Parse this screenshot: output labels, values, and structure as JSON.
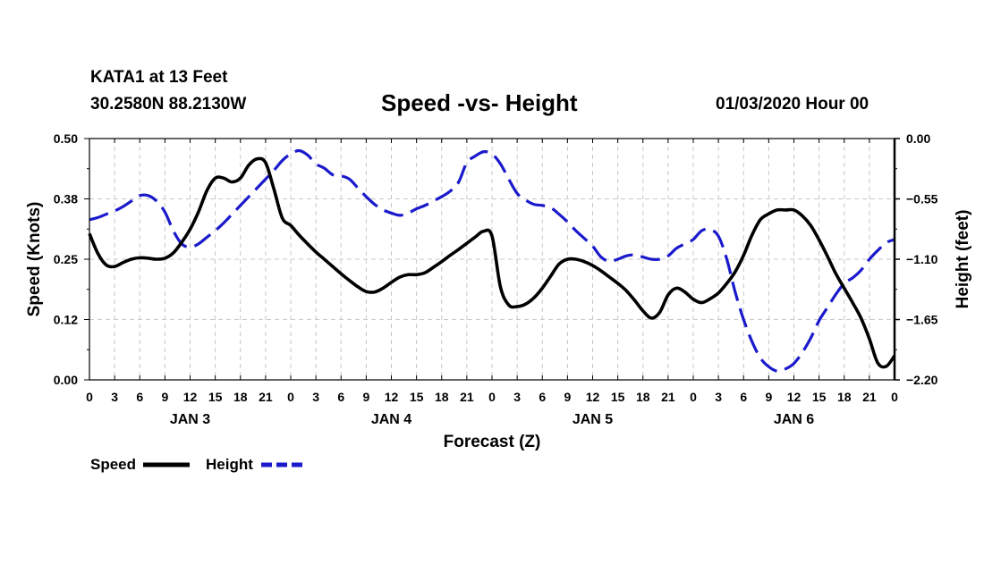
{
  "header": {
    "station": "KATA1 at 13 Feet",
    "coords": "30.2580N 88.2130W",
    "title": "Speed -vs- Height",
    "datestamp": "01/03/2020 Hour 00"
  },
  "colors": {
    "speed": "#000000",
    "height": "#1a1acc",
    "grid": "#c8c8c8"
  },
  "chart_data": {
    "type": "line",
    "title": "Speed -vs- Height",
    "xlabel": "Forecast (Z)",
    "ylabel": "Speed (Knots)",
    "y2label": "Height (feet)",
    "xlim": [
      0,
      96
    ],
    "ylim": [
      0,
      0.5
    ],
    "y2lim": [
      -2.2,
      0
    ],
    "grid": true,
    "x_ticks": [
      0,
      3,
      6,
      9,
      12,
      15,
      18,
      21,
      24,
      27,
      30,
      33,
      36,
      39,
      42,
      45,
      48,
      51,
      54,
      57,
      60,
      63,
      66,
      69,
      72,
      75,
      78,
      81,
      84,
      87,
      90,
      93,
      96
    ],
    "x_tick_labels": [
      "0",
      "3",
      "6",
      "9",
      "12",
      "15",
      "18",
      "21",
      "0",
      "3",
      "6",
      "9",
      "12",
      "15",
      "18",
      "21",
      "0",
      "3",
      "6",
      "9",
      "12",
      "15",
      "18",
      "21",
      "0",
      "3",
      "6",
      "9",
      "12",
      "15",
      "18",
      "21",
      "0"
    ],
    "day_labels": [
      {
        "label": "JAN 3",
        "x": 12
      },
      {
        "label": "JAN 4",
        "x": 36
      },
      {
        "label": "JAN 5",
        "x": 60
      },
      {
        "label": "JAN 6",
        "x": 84
      }
    ],
    "y_ticks": [
      0,
      0.125,
      0.25,
      0.375,
      0.5
    ],
    "y_tick_labels": [
      "0.00",
      "0.12",
      "0.25",
      "0.38",
      "0.50"
    ],
    "y2_ticks": [
      -2.2,
      -1.65,
      -1.1,
      -0.55,
      0
    ],
    "y2_tick_labels": [
      "−2.20",
      "−1.65",
      "−1.10",
      "−0.55",
      "0.00"
    ],
    "legend": [
      {
        "label": "Speed",
        "series": "Speed"
      },
      {
        "label": "Height",
        "series": "Height"
      }
    ],
    "legend_position": "bottom-left",
    "series": [
      {
        "name": "Speed",
        "axis": "left",
        "style": "solid",
        "x": [
          0,
          1,
          2,
          3,
          4,
          5,
          6,
          7,
          8,
          9,
          10,
          11,
          12,
          13,
          14,
          15,
          16,
          17,
          18,
          19,
          20,
          21,
          22,
          23,
          24,
          25,
          26,
          27,
          28,
          29,
          30,
          31,
          32,
          33,
          34,
          35,
          36,
          37,
          38,
          39,
          40,
          41,
          42,
          43,
          44,
          45,
          46,
          47,
          48,
          49,
          50,
          51,
          52,
          53,
          54,
          55,
          56,
          57,
          58,
          59,
          60,
          61,
          62,
          63,
          64,
          65,
          66,
          67,
          68,
          69,
          70,
          71,
          72,
          73,
          74,
          75,
          76,
          77,
          78,
          79,
          80,
          81,
          82,
          83,
          84,
          85,
          86,
          87,
          88,
          89,
          90,
          91,
          92,
          93,
          94,
          95,
          96
        ],
        "values": [
          0.303,
          0.262,
          0.238,
          0.235,
          0.243,
          0.25,
          0.253,
          0.252,
          0.25,
          0.252,
          0.263,
          0.285,
          0.312,
          0.348,
          0.392,
          0.418,
          0.418,
          0.41,
          0.418,
          0.445,
          0.458,
          0.45,
          0.395,
          0.335,
          0.32,
          0.3,
          0.282,
          0.265,
          0.25,
          0.235,
          0.22,
          0.206,
          0.193,
          0.183,
          0.182,
          0.19,
          0.202,
          0.213,
          0.218,
          0.218,
          0.222,
          0.233,
          0.245,
          0.258,
          0.27,
          0.283,
          0.296,
          0.308,
          0.298,
          0.193,
          0.155,
          0.152,
          0.157,
          0.17,
          0.19,
          0.215,
          0.24,
          0.25,
          0.25,
          0.245,
          0.237,
          0.226,
          0.213,
          0.2,
          0.185,
          0.165,
          0.143,
          0.128,
          0.14,
          0.176,
          0.19,
          0.182,
          0.167,
          0.16,
          0.168,
          0.18,
          0.2,
          0.224,
          0.258,
          0.3,
          0.332,
          0.344,
          0.352,
          0.352,
          0.352,
          0.34,
          0.32,
          0.29,
          0.256,
          0.22,
          0.19,
          0.16,
          0.128,
          0.085,
          0.035,
          0.028,
          0.05
        ]
      },
      {
        "name": "Height",
        "axis": "right",
        "style": "dashed",
        "x": [
          0,
          1,
          2,
          3,
          4,
          5,
          6,
          7,
          8,
          9,
          10,
          11,
          12,
          13,
          14,
          15,
          16,
          17,
          18,
          19,
          20,
          21,
          22,
          23,
          24,
          25,
          26,
          27,
          28,
          29,
          30,
          31,
          32,
          33,
          34,
          35,
          36,
          37,
          38,
          39,
          40,
          41,
          42,
          43,
          44,
          45,
          46,
          47,
          48,
          49,
          50,
          51,
          52,
          53,
          54,
          55,
          56,
          57,
          58,
          59,
          60,
          61,
          62,
          63,
          64,
          65,
          66,
          67,
          68,
          69,
          70,
          71,
          72,
          73,
          74,
          75,
          76,
          77,
          78,
          79,
          80,
          81,
          82,
          83,
          84,
          85,
          86,
          87,
          88,
          89,
          90,
          91,
          92,
          93,
          94,
          95,
          96
        ],
        "values": [
          -0.74,
          -0.72,
          -0.69,
          -0.66,
          -0.62,
          -0.57,
          -0.52,
          -0.52,
          -0.57,
          -0.67,
          -0.84,
          -0.96,
          -0.99,
          -0.96,
          -0.9,
          -0.84,
          -0.77,
          -0.69,
          -0.61,
          -0.53,
          -0.45,
          -0.37,
          -0.29,
          -0.2,
          -0.14,
          -0.11,
          -0.15,
          -0.23,
          -0.27,
          -0.33,
          -0.34,
          -0.37,
          -0.45,
          -0.53,
          -0.6,
          -0.65,
          -0.68,
          -0.7,
          -0.68,
          -0.64,
          -0.61,
          -0.57,
          -0.53,
          -0.48,
          -0.4,
          -0.22,
          -0.16,
          -0.12,
          -0.14,
          -0.23,
          -0.37,
          -0.5,
          -0.56,
          -0.6,
          -0.61,
          -0.63,
          -0.69,
          -0.76,
          -0.84,
          -0.91,
          -0.98,
          -1.08,
          -1.12,
          -1.1,
          -1.07,
          -1.06,
          -1.08,
          -1.1,
          -1.1,
          -1.07,
          -1.0,
          -0.96,
          -0.92,
          -0.84,
          -0.83,
          -0.89,
          -1.1,
          -1.4,
          -1.65,
          -1.85,
          -2.0,
          -2.08,
          -2.12,
          -2.1,
          -2.05,
          -1.95,
          -1.82,
          -1.66,
          -1.54,
          -1.42,
          -1.32,
          -1.27,
          -1.2,
          -1.1,
          -1.02,
          -0.95,
          -0.92
        ]
      }
    ]
  }
}
